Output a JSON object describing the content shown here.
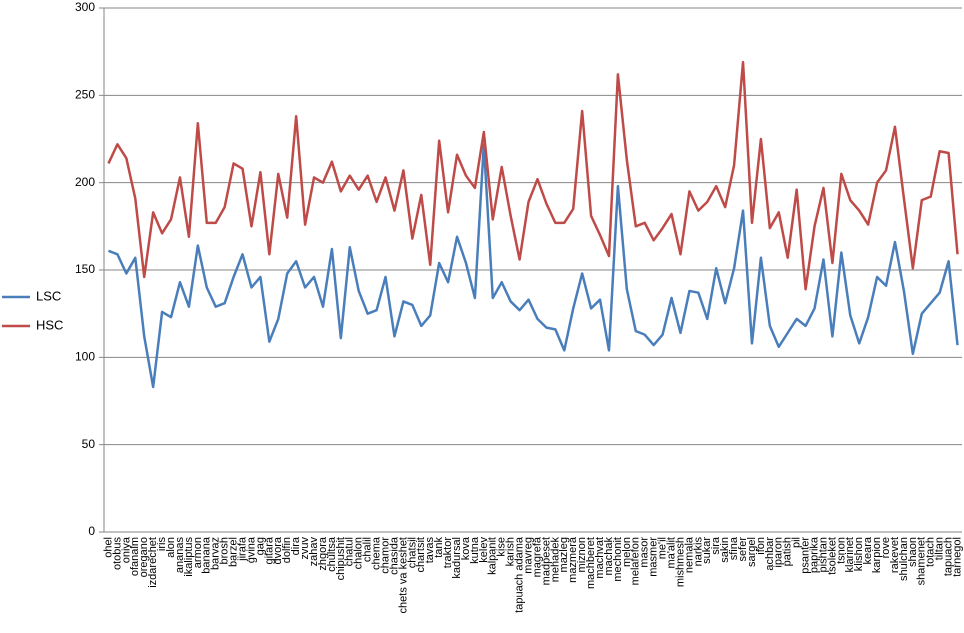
{
  "chart_data": {
    "type": "line",
    "categories": [
      "ohel",
      "otobus",
      "oniya",
      "ofanaim",
      "oregano",
      "izdarechet",
      "iris",
      "alon",
      "ananas",
      "ikaliptus",
      "armon",
      "banana",
      "barvaz",
      "brosh",
      "barzel",
      "jirafa",
      "gvina",
      "gag",
      "gitara",
      "dvora",
      "dolfin",
      "dira",
      "zvuv",
      "zahav",
      "zhgora",
      "chultsa",
      "chipushit",
      "chatul",
      "chalon",
      "chalil",
      "chema",
      "chamor",
      "chasida",
      "chets va keshet",
      "chatsil",
      "chartsit",
      "tavas",
      "tank",
      "traktor",
      "kadursal",
      "kova",
      "kutna",
      "kelev",
      "kalpanit",
      "kise",
      "karish",
      "tapuach adama",
      "mavreg",
      "magrefa",
      "madpeset",
      "mehadek",
      "mazleg",
      "mazmera",
      "miznon",
      "machberet",
      "machvat",
      "machak",
      "mechonit",
      "melon",
      "melafefon",
      "masor",
      "masmer",
      "me'il",
      "ma'alit",
      "mishmesh",
      "nemala",
      "narkis",
      "sukar",
      "sira",
      "sakin",
      "sfina",
      "sefer",
      "sargel",
      "ifon",
      "achbar",
      "iparon",
      "patish",
      "pil",
      "psanter",
      "paprika",
      "pishtan",
      "tsoleket",
      "tsnon",
      "klarinet",
      "klishon",
      "keara",
      "karpion",
      "rove",
      "rakevet",
      "shulchan",
      "shaon",
      "shamenet",
      "totach",
      "tiltan",
      "tapuach",
      "tarnegol"
    ],
    "series": [
      {
        "name": "LSC",
        "color": "#4a7ebb",
        "values": [
          161,
          159,
          148,
          157,
          112,
          83,
          126,
          123,
          143,
          129,
          164,
          140,
          129,
          131,
          146,
          159,
          140,
          146,
          109,
          122,
          148,
          155,
          140,
          146,
          129,
          162,
          111,
          163,
          138,
          125,
          127,
          146,
          112,
          132,
          130,
          118,
          124,
          154,
          143,
          169,
          154,
          134,
          222,
          134,
          143,
          132,
          127,
          133,
          122,
          117,
          116,
          104,
          128,
          148,
          128,
          133,
          104,
          198,
          139,
          115,
          113,
          107,
          113,
          134,
          114,
          138,
          137,
          122,
          151,
          131,
          151,
          184,
          108,
          157,
          118,
          106,
          114,
          122,
          118,
          128,
          156,
          112,
          160,
          124,
          108,
          123,
          146,
          141,
          166,
          138,
          102,
          125,
          131,
          137,
          155,
          107
        ]
      },
      {
        "name": "HSC",
        "color": "#be4b48",
        "values": [
          211,
          222,
          214,
          191,
          146,
          183,
          171,
          179,
          203,
          169,
          234,
          177,
          177,
          186,
          211,
          208,
          175,
          206,
          159,
          205,
          180,
          238,
          176,
          203,
          200,
          212,
          195,
          204,
          196,
          204,
          189,
          203,
          184,
          207,
          168,
          193,
          153,
          224,
          183,
          216,
          204,
          197,
          229,
          179,
          209,
          181,
          156,
          189,
          202,
          188,
          177,
          177,
          185,
          241,
          181,
          170,
          158,
          262,
          213,
          175,
          177,
          167,
          174,
          182,
          159,
          195,
          184,
          189,
          198,
          186,
          210,
          269,
          177,
          225,
          174,
          183,
          157,
          196,
          139,
          175,
          197,
          154,
          205,
          190,
          184,
          176,
          200,
          207,
          232,
          191,
          151,
          190,
          192,
          218,
          217,
          159
        ]
      }
    ],
    "ylim": [
      0,
      300
    ],
    "yticks": [
      0,
      50,
      100,
      150,
      200,
      250,
      300
    ],
    "grid": true,
    "legend": "left"
  }
}
